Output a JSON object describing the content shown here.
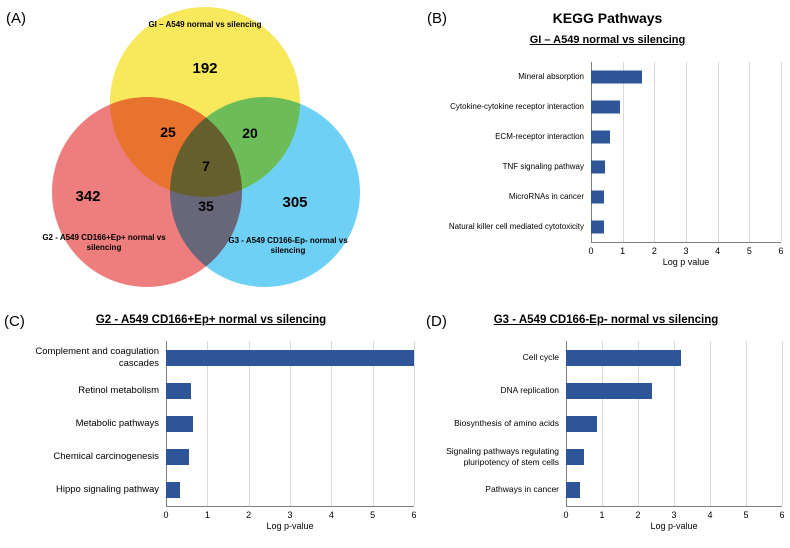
{
  "figure": {
    "panel_labels": {
      "a": "(A)",
      "b": "(B)",
      "c": "(C)",
      "d": "(D)"
    }
  },
  "venn": {
    "sets": [
      {
        "label": "GI – A549 normal vs silencing",
        "unique_count": "192",
        "color": "#F8E85C"
      },
      {
        "label": "G2 - A549 CD166+Ep+ normal vs silencing",
        "unique_count": "342",
        "color": "#EE7E7E"
      },
      {
        "label": "G3 - A549 CD166-Ep- normal vs silencing",
        "unique_count": "305",
        "color": "#6FD0F5"
      }
    ],
    "overlaps": {
      "g1_g2": "25",
      "g1_g3": "20",
      "g2_g3": "35",
      "g1_g2_g3": "7"
    }
  },
  "chart_data": [
    {
      "type": "bar",
      "orientation": "horizontal",
      "panel": "B",
      "title": "KEGG Pathways",
      "subtitle": "GI – A549 normal vs silencing",
      "categories": [
        "Mineral absorption",
        "Cytokine-cytokine receptor interaction",
        "ECM-receptor interaction",
        "TNF signaling pathway",
        "MicroRNAs in cancer",
        "Natural killer cell mediated cytotoxicity"
      ],
      "values": [
        1.6,
        0.9,
        0.6,
        0.45,
        0.4,
        0.4
      ],
      "xlabel": "Log p value",
      "xlim": [
        0,
        6
      ],
      "xticks": [
        0,
        1,
        2,
        3,
        4,
        5,
        6
      ],
      "bar_color": "#2E5597",
      "grid": true,
      "legend": false
    },
    {
      "type": "bar",
      "orientation": "horizontal",
      "panel": "C",
      "title": "G2 - A549 CD166+Ep+ normal vs silencing",
      "subtitle": "",
      "categories": [
        "Complement and coagulation cascades",
        "Retinol metabolism",
        "Metabolic pathways",
        "Chemical carcinogenesis",
        "Hippo signaling pathway"
      ],
      "values": [
        6.0,
        0.6,
        0.65,
        0.55,
        0.35
      ],
      "xlabel": "Log p-value",
      "xlim": [
        0,
        6
      ],
      "xticks": [
        0,
        1,
        2,
        3,
        4,
        5,
        6
      ],
      "bar_color": "#2E5597",
      "grid": true,
      "legend": false
    },
    {
      "type": "bar",
      "orientation": "horizontal",
      "panel": "D",
      "title": "G3 - A549 CD166-Ep- normal vs silencing",
      "subtitle": "",
      "categories": [
        "Cell cycle",
        "DNA replication",
        "Biosynthesis of amino acids",
        "Signaling pathways regulating pluripotency of stem cells",
        "Pathways in cancer"
      ],
      "values": [
        3.2,
        2.4,
        0.85,
        0.5,
        0.4
      ],
      "xlabel": "Log p-value",
      "xlim": [
        0,
        6
      ],
      "xticks": [
        0,
        1,
        2,
        3,
        4,
        5,
        6
      ],
      "bar_color": "#2E5597",
      "grid": true,
      "legend": false
    }
  ]
}
